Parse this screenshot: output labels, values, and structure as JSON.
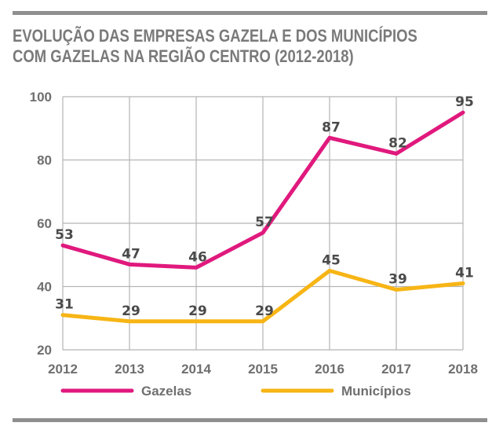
{
  "title": {
    "line1": "EVOLUÇÃO DAS EMPRESAS GAZELA E DOS MUNICÍPIOS",
    "line2": "COM GAZELAS NA REGIÃO CENTRO (2012-2018)"
  },
  "colors": {
    "gazelas": "#e0197d",
    "municipios": "#f7b515",
    "grid": "#b5b5b5",
    "frame": "#8f8f8f"
  },
  "chart_data": {
    "type": "line",
    "title": "EVOLUÇÃO DAS EMPRESAS GAZELA E DOS MUNICÍPIOS COM GAZELAS NA REGIÃO CENTRO (2012-2018)",
    "x": [
      "2012",
      "2013",
      "2014",
      "2015",
      "2016",
      "2017",
      "2018"
    ],
    "xlabel": "",
    "ylabel": "",
    "ylim": [
      20,
      100
    ],
    "yticks": [
      20,
      40,
      60,
      80,
      100
    ],
    "grid": true,
    "legend_position": "bottom",
    "series": [
      {
        "name": "Gazelas",
        "values": [
          53,
          47,
          46,
          57,
          87,
          82,
          95
        ],
        "color": "#e0197d"
      },
      {
        "name": "Municípios",
        "values": [
          31,
          29,
          29,
          29,
          45,
          39,
          41
        ],
        "color": "#f7b515"
      }
    ]
  }
}
